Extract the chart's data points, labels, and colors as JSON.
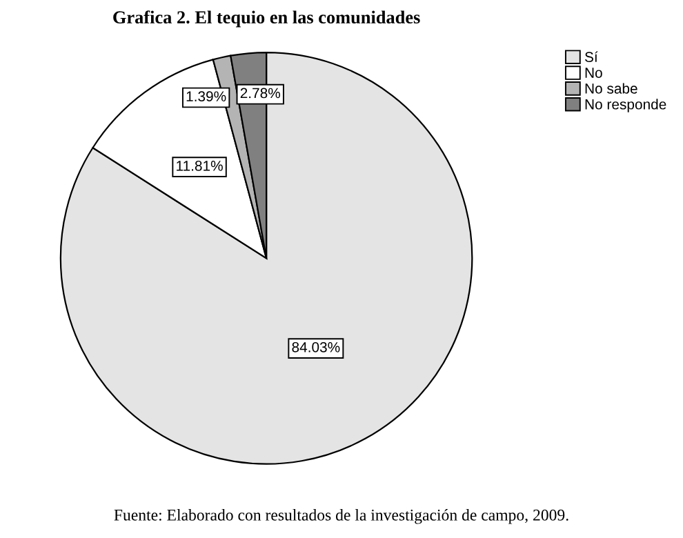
{
  "chart_data": {
    "type": "pie",
    "title": "Grafica 2. El tequio en las comunidades",
    "categories": [
      "Sí",
      "No",
      "No sabe",
      "No responde"
    ],
    "values": [
      84.03,
      11.81,
      1.39,
      2.78
    ],
    "value_labels": [
      "84.03%",
      "11.81%",
      "1.39%",
      "2.78%"
    ],
    "colors": [
      "#e4e4e4",
      "#ffffff",
      "#b4b4b4",
      "#808080"
    ],
    "legend": "top right",
    "annotations": [
      "Fuente: Elaborado con resultados de la investigación de campo, 2009."
    ]
  }
}
